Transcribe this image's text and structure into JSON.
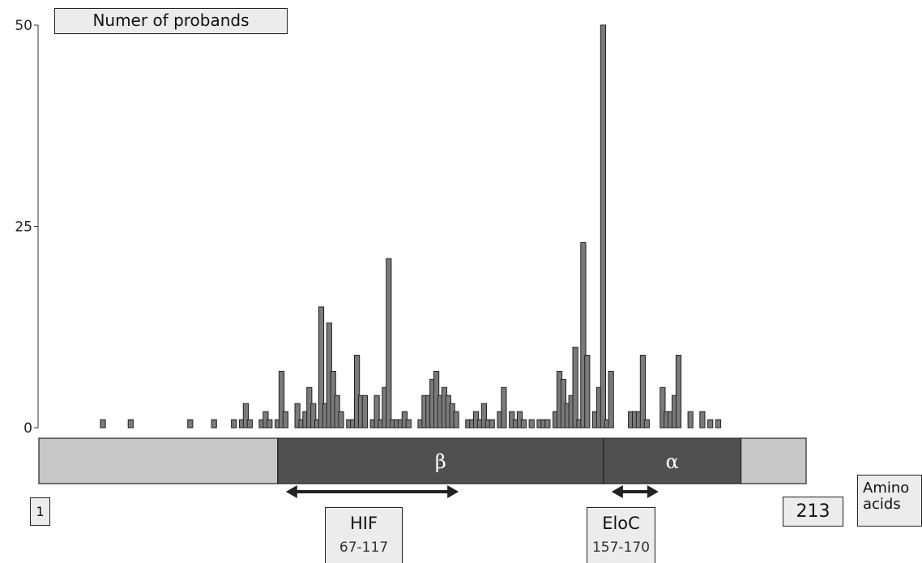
{
  "chart_data": {
    "type": "bar",
    "title": "Numer of probands",
    "xlabel": "Amino acids",
    "y_ticks": [
      "0",
      "25",
      "50"
    ],
    "ylim": [
      0,
      50
    ],
    "xlim": [
      1,
      213
    ],
    "start_label": "1",
    "end_label": "213",
    "unit_lines": [
      "Amino",
      "acids"
    ],
    "bars": [
      {
        "x": 21,
        "y": 1
      },
      {
        "x": 28,
        "y": 1
      },
      {
        "x": 43,
        "y": 1
      },
      {
        "x": 49,
        "y": 1
      },
      {
        "x": 54,
        "y": 1
      },
      {
        "x": 56,
        "y": 1
      },
      {
        "x": 57,
        "y": 3
      },
      {
        "x": 58,
        "y": 1
      },
      {
        "x": 61,
        "y": 1
      },
      {
        "x": 62,
        "y": 2
      },
      {
        "x": 63,
        "y": 1
      },
      {
        "x": 65,
        "y": 1
      },
      {
        "x": 66,
        "y": 7
      },
      {
        "x": 67,
        "y": 2
      },
      {
        "x": 70,
        "y": 3
      },
      {
        "x": 71,
        "y": 1
      },
      {
        "x": 72,
        "y": 2
      },
      {
        "x": 73,
        "y": 5
      },
      {
        "x": 74,
        "y": 3
      },
      {
        "x": 75,
        "y": 1
      },
      {
        "x": 76,
        "y": 15
      },
      {
        "x": 77,
        "y": 3
      },
      {
        "x": 78,
        "y": 13
      },
      {
        "x": 79,
        "y": 7
      },
      {
        "x": 80,
        "y": 4
      },
      {
        "x": 81,
        "y": 2
      },
      {
        "x": 83,
        "y": 1
      },
      {
        "x": 84,
        "y": 1
      },
      {
        "x": 85,
        "y": 9
      },
      {
        "x": 86,
        "y": 4
      },
      {
        "x": 87,
        "y": 4
      },
      {
        "x": 89,
        "y": 1
      },
      {
        "x": 90,
        "y": 4
      },
      {
        "x": 91,
        "y": 1
      },
      {
        "x": 92,
        "y": 5
      },
      {
        "x": 93,
        "y": 21
      },
      {
        "x": 94,
        "y": 1
      },
      {
        "x": 95,
        "y": 1
      },
      {
        "x": 96,
        "y": 1
      },
      {
        "x": 97,
        "y": 2
      },
      {
        "x": 98,
        "y": 1
      },
      {
        "x": 101,
        "y": 1
      },
      {
        "x": 102,
        "y": 4
      },
      {
        "x": 103,
        "y": 4
      },
      {
        "x": 104,
        "y": 6
      },
      {
        "x": 105,
        "y": 7
      },
      {
        "x": 106,
        "y": 4
      },
      {
        "x": 107,
        "y": 5
      },
      {
        "x": 108,
        "y": 4
      },
      {
        "x": 109,
        "y": 3
      },
      {
        "x": 110,
        "y": 2
      },
      {
        "x": 113,
        "y": 1
      },
      {
        "x": 114,
        "y": 1
      },
      {
        "x": 115,
        "y": 2
      },
      {
        "x": 116,
        "y": 1
      },
      {
        "x": 117,
        "y": 3
      },
      {
        "x": 118,
        "y": 1
      },
      {
        "x": 119,
        "y": 1
      },
      {
        "x": 121,
        "y": 2
      },
      {
        "x": 122,
        "y": 5
      },
      {
        "x": 124,
        "y": 2
      },
      {
        "x": 125,
        "y": 1
      },
      {
        "x": 126,
        "y": 2
      },
      {
        "x": 127,
        "y": 1
      },
      {
        "x": 129,
        "y": 1
      },
      {
        "x": 131,
        "y": 1
      },
      {
        "x": 132,
        "y": 1
      },
      {
        "x": 133,
        "y": 1
      },
      {
        "x": 135,
        "y": 2
      },
      {
        "x": 136,
        "y": 7
      },
      {
        "x": 137,
        "y": 6
      },
      {
        "x": 138,
        "y": 3
      },
      {
        "x": 139,
        "y": 4
      },
      {
        "x": 140,
        "y": 10
      },
      {
        "x": 141,
        "y": 1
      },
      {
        "x": 142,
        "y": 23
      },
      {
        "x": 143,
        "y": 9
      },
      {
        "x": 145,
        "y": 2
      },
      {
        "x": 146,
        "y": 5
      },
      {
        "x": 147,
        "y": 50
      },
      {
        "x": 148,
        "y": 1
      },
      {
        "x": 149,
        "y": 7
      },
      {
        "x": 154,
        "y": 2
      },
      {
        "x": 155,
        "y": 2
      },
      {
        "x": 156,
        "y": 2
      },
      {
        "x": 157,
        "y": 9
      },
      {
        "x": 158,
        "y": 1
      },
      {
        "x": 162,
        "y": 5
      },
      {
        "x": 163,
        "y": 2
      },
      {
        "x": 164,
        "y": 2
      },
      {
        "x": 165,
        "y": 4
      },
      {
        "x": 166,
        "y": 9
      },
      {
        "x": 169,
        "y": 2
      },
      {
        "x": 172,
        "y": 2
      },
      {
        "x": 174,
        "y": 1
      },
      {
        "x": 176,
        "y": 1
      }
    ],
    "domains": [
      {
        "name": "",
        "start": 1,
        "end": 67
      },
      {
        "name": "β",
        "start": 67,
        "end": 157
      },
      {
        "name": "α",
        "start": 157,
        "end": 195
      },
      {
        "name": "",
        "start": 195,
        "end": 213
      }
    ],
    "regions": [
      {
        "name": "HIF",
        "range": "67-117",
        "start": 67,
        "end": 117
      },
      {
        "name": "EloC",
        "range": "157-170",
        "start": 157,
        "end": 170
      }
    ],
    "colors": {
      "bar": "#7a7a7a",
      "domain_dark": "#505050",
      "domain_light": "#c8c8c8",
      "arrow": "#222222",
      "box": "#ececec"
    }
  }
}
